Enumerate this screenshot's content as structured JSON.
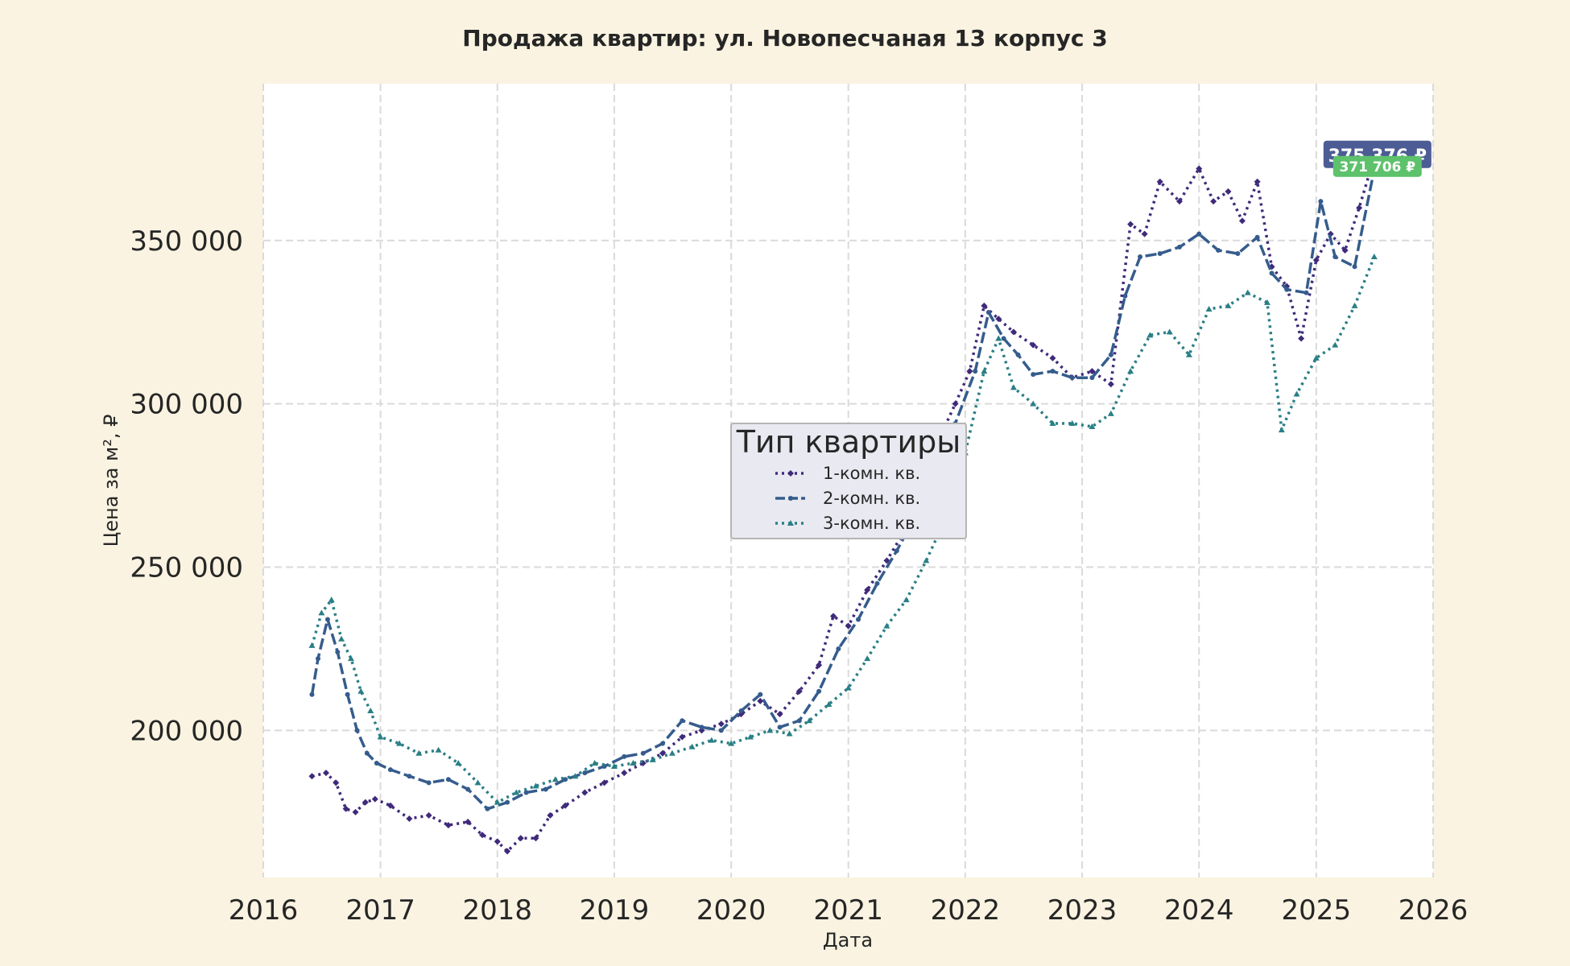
{
  "chart_data": {
    "type": "line",
    "title": "Продажа квартир: ул. Новопесчаная 13 корпус 3",
    "xlabel": "Дата",
    "ylabel": "Цена за м², ₽",
    "xlim": [
      "2016-01-01",
      "2026-01-01"
    ],
    "ylim": [
      155000,
      398000
    ],
    "x_ticks": [
      "2016",
      "2017",
      "2018",
      "2019",
      "2020",
      "2021",
      "2022",
      "2023",
      "2024",
      "2025",
      "2026"
    ],
    "y_ticks": [
      {
        "value": 200000,
        "label": "200 000"
      },
      {
        "value": 250000,
        "label": "250 000"
      },
      {
        "value": 300000,
        "label": "300 000"
      },
      {
        "value": 350000,
        "label": "350 000"
      }
    ],
    "grid": true,
    "legend": {
      "title": "Тип квартиры",
      "position": "center"
    },
    "colors": {
      "1-комн. кв.": "#3F2A7A",
      "2-комн. кв.": "#355C8C",
      "3-комн. кв.": "#2A7F86"
    },
    "series": [
      {
        "name": "1-комн. кв.",
        "style": "dotted",
        "marker": "diamond",
        "points": [
          [
            "2016-06-01",
            186000
          ],
          [
            "2016-07-15",
            187000
          ],
          [
            "2016-08-15",
            184000
          ],
          [
            "2016-09-15",
            176000
          ],
          [
            "2016-10-15",
            175000
          ],
          [
            "2016-11-15",
            178000
          ],
          [
            "2016-12-15",
            179000
          ],
          [
            "2017-02-01",
            177000
          ],
          [
            "2017-04-01",
            173000
          ],
          [
            "2017-06-01",
            174000
          ],
          [
            "2017-08-01",
            171000
          ],
          [
            "2017-10-01",
            172000
          ],
          [
            "2017-11-15",
            168000
          ],
          [
            "2018-01-01",
            166000
          ],
          [
            "2018-02-01",
            163000
          ],
          [
            "2018-03-15",
            167000
          ],
          [
            "2018-05-01",
            167000
          ],
          [
            "2018-06-15",
            174000
          ],
          [
            "2018-08-01",
            177000
          ],
          [
            "2018-10-01",
            181000
          ],
          [
            "2018-12-01",
            184000
          ],
          [
            "2019-02-01",
            187000
          ],
          [
            "2019-04-01",
            190000
          ],
          [
            "2019-06-01",
            193000
          ],
          [
            "2019-08-01",
            198000
          ],
          [
            "2019-10-01",
            200000
          ],
          [
            "2019-12-01",
            202000
          ],
          [
            "2020-02-01",
            205000
          ],
          [
            "2020-04-01",
            209000
          ],
          [
            "2020-06-01",
            205000
          ],
          [
            "2020-08-01",
            212000
          ],
          [
            "2020-10-01",
            220000
          ],
          [
            "2020-11-15",
            235000
          ],
          [
            "2021-01-01",
            232000
          ],
          [
            "2021-03-01",
            243000
          ],
          [
            "2021-05-01",
            252000
          ],
          [
            "2021-07-01",
            262000
          ],
          [
            "2021-09-01",
            275000
          ],
          [
            "2021-10-15",
            290000
          ],
          [
            "2021-12-01",
            300000
          ],
          [
            "2022-01-15",
            310000
          ],
          [
            "2022-03-01",
            330000
          ],
          [
            "2022-04-15",
            326000
          ],
          [
            "2022-06-01",
            322000
          ],
          [
            "2022-08-01",
            318000
          ],
          [
            "2022-10-01",
            314000
          ],
          [
            "2022-12-01",
            308000
          ],
          [
            "2023-02-01",
            310000
          ],
          [
            "2023-04-01",
            306000
          ],
          [
            "2023-06-01",
            355000
          ],
          [
            "2023-07-15",
            352000
          ],
          [
            "2023-09-01",
            368000
          ],
          [
            "2023-11-01",
            362000
          ],
          [
            "2024-01-01",
            372000
          ],
          [
            "2024-02-15",
            362000
          ],
          [
            "2024-04-01",
            365000
          ],
          [
            "2024-05-15",
            356000
          ],
          [
            "2024-07-01",
            368000
          ],
          [
            "2024-08-15",
            342000
          ],
          [
            "2024-10-01",
            336000
          ],
          [
            "2024-11-15",
            320000
          ],
          [
            "2025-01-01",
            344000
          ],
          [
            "2025-02-15",
            352000
          ],
          [
            "2025-04-01",
            347000
          ],
          [
            "2025-05-15",
            360000
          ],
          [
            "2025-07-01",
            375376
          ]
        ]
      },
      {
        "name": "2-комн. кв.",
        "style": "dashed",
        "marker": "circle",
        "points": [
          [
            "2016-06-01",
            211000
          ],
          [
            "2016-06-20",
            222000
          ],
          [
            "2016-07-20",
            234000
          ],
          [
            "2016-08-20",
            224000
          ],
          [
            "2016-09-20",
            211000
          ],
          [
            "2016-10-20",
            200000
          ],
          [
            "2016-11-20",
            193000
          ],
          [
            "2016-12-20",
            190000
          ],
          [
            "2017-02-01",
            188000
          ],
          [
            "2017-04-01",
            186000
          ],
          [
            "2017-06-01",
            184000
          ],
          [
            "2017-08-01",
            185000
          ],
          [
            "2017-10-01",
            182000
          ],
          [
            "2017-12-01",
            176000
          ],
          [
            "2018-02-01",
            178000
          ],
          [
            "2018-04-01",
            181000
          ],
          [
            "2018-06-01",
            182000
          ],
          [
            "2018-08-01",
            185000
          ],
          [
            "2018-10-01",
            187000
          ],
          [
            "2018-12-01",
            189000
          ],
          [
            "2019-02-01",
            192000
          ],
          [
            "2019-04-01",
            193000
          ],
          [
            "2019-06-01",
            196000
          ],
          [
            "2019-08-01",
            203000
          ],
          [
            "2019-10-01",
            201000
          ],
          [
            "2019-12-01",
            200000
          ],
          [
            "2020-02-01",
            206000
          ],
          [
            "2020-04-01",
            211000
          ],
          [
            "2020-06-01",
            201000
          ],
          [
            "2020-08-01",
            203000
          ],
          [
            "2020-10-01",
            212000
          ],
          [
            "2020-12-01",
            225000
          ],
          [
            "2021-02-01",
            234000
          ],
          [
            "2021-04-01",
            245000
          ],
          [
            "2021-06-01",
            255000
          ],
          [
            "2021-08-01",
            266000
          ],
          [
            "2021-10-01",
            279000
          ],
          [
            "2021-12-01",
            294000
          ],
          [
            "2022-02-01",
            310000
          ],
          [
            "2022-03-15",
            328000
          ],
          [
            "2022-05-01",
            320000
          ],
          [
            "2022-06-15",
            315000
          ],
          [
            "2022-08-01",
            309000
          ],
          [
            "2022-10-01",
            310000
          ],
          [
            "2022-12-01",
            308000
          ],
          [
            "2023-02-01",
            308000
          ],
          [
            "2023-04-01",
            315000
          ],
          [
            "2023-05-15",
            333000
          ],
          [
            "2023-07-01",
            345000
          ],
          [
            "2023-09-01",
            346000
          ],
          [
            "2023-11-01",
            348000
          ],
          [
            "2024-01-01",
            352000
          ],
          [
            "2024-03-01",
            347000
          ],
          [
            "2024-05-01",
            346000
          ],
          [
            "2024-07-01",
            351000
          ],
          [
            "2024-08-15",
            340000
          ],
          [
            "2024-10-01",
            335000
          ],
          [
            "2024-12-01",
            334000
          ],
          [
            "2025-01-15",
            362000
          ],
          [
            "2025-03-01",
            345000
          ],
          [
            "2025-05-01",
            342000
          ],
          [
            "2025-07-01",
            371706
          ]
        ]
      },
      {
        "name": "3-комн. кв.",
        "style": "dotted",
        "marker": "triangle",
        "points": [
          [
            "2016-06-01",
            226000
          ],
          [
            "2016-07-01",
            236000
          ],
          [
            "2016-08-01",
            240000
          ],
          [
            "2016-09-01",
            228000
          ],
          [
            "2016-10-01",
            222000
          ],
          [
            "2016-11-01",
            212000
          ],
          [
            "2016-12-01",
            206000
          ],
          [
            "2017-01-01",
            198000
          ],
          [
            "2017-03-01",
            196000
          ],
          [
            "2017-05-01",
            193000
          ],
          [
            "2017-07-01",
            194000
          ],
          [
            "2017-09-01",
            190000
          ],
          [
            "2017-11-01",
            184000
          ],
          [
            "2018-01-01",
            178000
          ],
          [
            "2018-03-01",
            181000
          ],
          [
            "2018-05-01",
            183000
          ],
          [
            "2018-07-01",
            185000
          ],
          [
            "2018-09-01",
            186000
          ],
          [
            "2018-11-01",
            190000
          ],
          [
            "2019-01-01",
            189000
          ],
          [
            "2019-03-01",
            190000
          ],
          [
            "2019-05-01",
            191000
          ],
          [
            "2019-07-01",
            193000
          ],
          [
            "2019-09-01",
            195000
          ],
          [
            "2019-11-01",
            197000
          ],
          [
            "2020-01-01",
            196000
          ],
          [
            "2020-03-01",
            198000
          ],
          [
            "2020-05-01",
            200000
          ],
          [
            "2020-07-01",
            199000
          ],
          [
            "2020-09-01",
            203000
          ],
          [
            "2020-11-01",
            208000
          ],
          [
            "2021-01-01",
            213000
          ],
          [
            "2021-03-01",
            222000
          ],
          [
            "2021-05-01",
            232000
          ],
          [
            "2021-07-01",
            240000
          ],
          [
            "2021-09-01",
            252000
          ],
          [
            "2021-11-01",
            265000
          ],
          [
            "2022-01-01",
            285000
          ],
          [
            "2022-03-01",
            310000
          ],
          [
            "2022-04-15",
            320000
          ],
          [
            "2022-06-01",
            305000
          ],
          [
            "2022-08-01",
            300000
          ],
          [
            "2022-10-01",
            294000
          ],
          [
            "2022-12-01",
            294000
          ],
          [
            "2023-02-01",
            293000
          ],
          [
            "2023-04-01",
            297000
          ],
          [
            "2023-06-01",
            310000
          ],
          [
            "2023-08-01",
            321000
          ],
          [
            "2023-10-01",
            322000
          ],
          [
            "2023-12-01",
            315000
          ],
          [
            "2024-02-01",
            329000
          ],
          [
            "2024-04-01",
            330000
          ],
          [
            "2024-06-01",
            334000
          ],
          [
            "2024-08-01",
            331000
          ],
          [
            "2024-09-15",
            292000
          ],
          [
            "2024-11-01",
            303000
          ],
          [
            "2025-01-01",
            314000
          ],
          [
            "2025-03-01",
            318000
          ],
          [
            "2025-05-01",
            330000
          ],
          [
            "2025-07-01",
            345000
          ]
        ]
      }
    ],
    "annotations": [
      {
        "text": "375 376 ₽",
        "series": "1-комн. кв.",
        "x": "2025-07-01",
        "y": 375376,
        "color": "#4C5C94"
      },
      {
        "text": "371 706 ₽",
        "series": "2-комн. кв.",
        "x": "2025-07-01",
        "y": 371706,
        "color": "#5DC26B"
      }
    ]
  }
}
